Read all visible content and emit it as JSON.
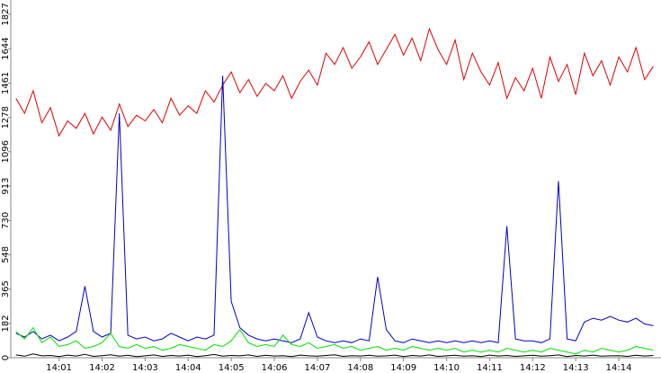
{
  "chart_data": {
    "type": "line",
    "x": [
      0,
      0.2,
      0.4,
      0.6,
      0.8,
      1,
      1.2,
      1.4,
      1.6,
      1.8,
      2,
      2.2,
      2.4,
      2.6,
      2.8,
      3,
      3.2,
      3.4,
      3.6,
      3.8,
      4,
      4.2,
      4.4,
      4.6,
      4.8,
      5,
      5.2,
      5.4,
      5.6,
      5.8,
      6,
      6.2,
      6.4,
      6.6,
      6.8,
      7,
      7.2,
      7.4,
      7.6,
      7.8,
      8,
      8.2,
      8.4,
      8.6,
      8.8,
      9,
      9.2,
      9.4,
      9.6,
      9.8,
      10,
      10.2,
      10.4,
      10.6,
      10.8,
      11,
      11.2,
      11.4,
      11.6,
      11.8,
      12,
      12.2,
      12.4,
      12.6,
      12.8,
      13,
      13.2,
      13.4,
      13.6,
      13.8,
      14,
      14.2,
      14.4,
      14.6,
      14.8
    ],
    "series": [
      {
        "color": "#e00000",
        "values": [
          1380,
          1300,
          1420,
          1250,
          1330,
          1180,
          1260,
          1220,
          1300,
          1190,
          1280,
          1210,
          1350,
          1230,
          1290,
          1260,
          1320,
          1250,
          1380,
          1290,
          1340,
          1300,
          1420,
          1360,
          1450,
          1520,
          1410,
          1480,
          1390,
          1460,
          1420,
          1500,
          1380,
          1470,
          1530,
          1450,
          1620,
          1560,
          1650,
          1540,
          1600,
          1680,
          1560,
          1640,
          1720,
          1610,
          1700,
          1580,
          1750,
          1640,
          1560,
          1690,
          1480,
          1620,
          1520,
          1450,
          1570,
          1380,
          1490,
          1420,
          1540,
          1380,
          1600,
          1470,
          1560,
          1400,
          1620,
          1500,
          1580,
          1450,
          1600,
          1520,
          1650,
          1480,
          1550
        ]
      },
      {
        "color": "#0000c8",
        "values": [
          130,
          110,
          140,
          100,
          120,
          90,
          110,
          140,
          380,
          140,
          110,
          130,
          1300,
          120,
          100,
          110,
          90,
          100,
          130,
          110,
          90,
          110,
          100,
          120,
          1500,
          300,
          160,
          120,
          100,
          90,
          100,
          90,
          80,
          100,
          240,
          110,
          90,
          80,
          90,
          80,
          100,
          90,
          430,
          150,
          90,
          80,
          100,
          90,
          80,
          90,
          80,
          90,
          80,
          90,
          80,
          90,
          80,
          700,
          100,
          90,
          90,
          80,
          100,
          940,
          100,
          90,
          190,
          210,
          200,
          220,
          200,
          190,
          210,
          180,
          170
        ]
      },
      {
        "color": "#00e000",
        "values": [
          140,
          100,
          160,
          80,
          110,
          60,
          70,
          90,
          50,
          60,
          80,
          130,
          60,
          50,
          70,
          50,
          60,
          40,
          50,
          70,
          60,
          50,
          40,
          70,
          60,
          90,
          150,
          80,
          60,
          70,
          60,
          120,
          70,
          60,
          80,
          50,
          60,
          70,
          50,
          60,
          40,
          50,
          60,
          40,
          50,
          40,
          60,
          50,
          40,
          50,
          40,
          50,
          30,
          40,
          30,
          40,
          30,
          50,
          40,
          30,
          40,
          30,
          50,
          40,
          30,
          20,
          40,
          30,
          50,
          40,
          30,
          40,
          60,
          50,
          40
        ]
      },
      {
        "color": "#000000",
        "values": [
          15,
          8,
          20,
          10,
          12,
          6,
          14,
          9,
          18,
          7,
          11,
          16,
          8,
          13,
          6,
          10,
          15,
          7,
          12,
          9,
          14,
          6,
          11,
          17,
          8,
          12,
          10,
          15,
          7,
          13,
          9,
          11,
          6,
          14,
          10,
          8,
          12,
          16,
          7,
          11,
          9,
          13,
          8,
          10,
          14,
          6,
          12,
          9,
          15,
          7,
          10,
          13,
          8,
          11,
          6,
          14,
          9,
          12,
          7,
          10,
          13,
          8,
          11,
          15,
          6,
          12,
          9,
          14,
          8,
          10,
          11,
          7,
          13,
          9,
          12
        ]
      }
    ],
    "xlim": [
      -0.12,
      14.98
    ],
    "xticks": [
      {
        "value": 1,
        "label": "14:01"
      },
      {
        "value": 2,
        "label": "14:02"
      },
      {
        "value": 3,
        "label": "14:03"
      },
      {
        "value": 4,
        "label": "14:04"
      },
      {
        "value": 5,
        "label": "14:05"
      },
      {
        "value": 6,
        "label": "14:06"
      },
      {
        "value": 7,
        "label": "14:07"
      },
      {
        "value": 8,
        "label": "14:08"
      },
      {
        "value": 9,
        "label": "14:09"
      },
      {
        "value": 10,
        "label": "14:10"
      },
      {
        "value": 11,
        "label": "14:11"
      },
      {
        "value": 12,
        "label": "14:12"
      },
      {
        "value": 13,
        "label": "14:13"
      },
      {
        "value": 14,
        "label": "14:14"
      }
    ],
    "ylim": [
      0,
      1903
    ],
    "yticks": [
      0,
      182,
      365,
      548,
      730,
      913,
      1096,
      1278,
      1461,
      1644,
      1827
    ]
  }
}
